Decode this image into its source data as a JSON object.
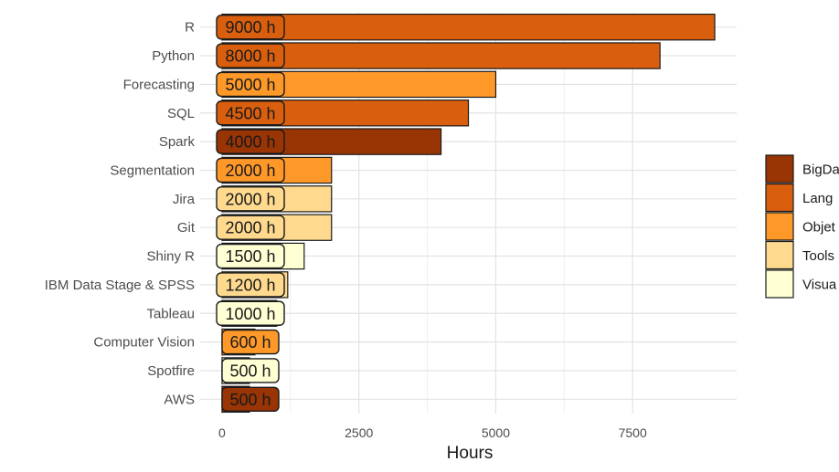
{
  "chart_data": {
    "type": "bar",
    "orientation": "horizontal",
    "categories": [
      "R",
      "Python",
      "Forecasting",
      "SQL",
      "Spark",
      "Segmentation",
      "Jira",
      "Git",
      "Shiny R",
      "IBM Data Stage & SPSS",
      "Tableau",
      "Computer Vision",
      "Spotfire",
      "AWS"
    ],
    "values": [
      9000,
      8000,
      5000,
      4500,
      4000,
      2000,
      2000,
      2000,
      1500,
      1200,
      1000,
      600,
      500,
      500
    ],
    "groups": [
      "Lang",
      "Lang",
      "Objet",
      "Lang",
      "BigDa",
      "Objet",
      "Tools",
      "Tools",
      "Visua",
      "Tools",
      "Visua",
      "Objet",
      "Visua",
      "BigDa"
    ],
    "bar_labels": [
      "9000 h",
      "8000 h",
      "5000 h",
      "4500 h",
      "4000 h",
      "2000 h",
      "2000 h",
      "2000 h",
      "1500 h",
      "1200 h",
      "1000 h",
      "600 h",
      "500 h",
      "500 h"
    ],
    "xlabel": "Hours",
    "ylabel": "",
    "xticks": [
      0,
      2500,
      5000,
      7500
    ],
    "xtick_labels": [
      "0",
      "2500",
      "5000",
      "7500"
    ],
    "xlim": [
      -400,
      9400
    ],
    "grid": true,
    "legend": {
      "placement": "right",
      "entries": [
        {
          "label": "BigDa",
          "color": "#993404"
        },
        {
          "label": "Lang",
          "color": "#D95F0E"
        },
        {
          "label": "Objet",
          "color": "#FE9929"
        },
        {
          "label": "Tools",
          "color": "#FED98E"
        },
        {
          "label": "Visua",
          "color": "#FFFFD4"
        }
      ]
    }
  }
}
